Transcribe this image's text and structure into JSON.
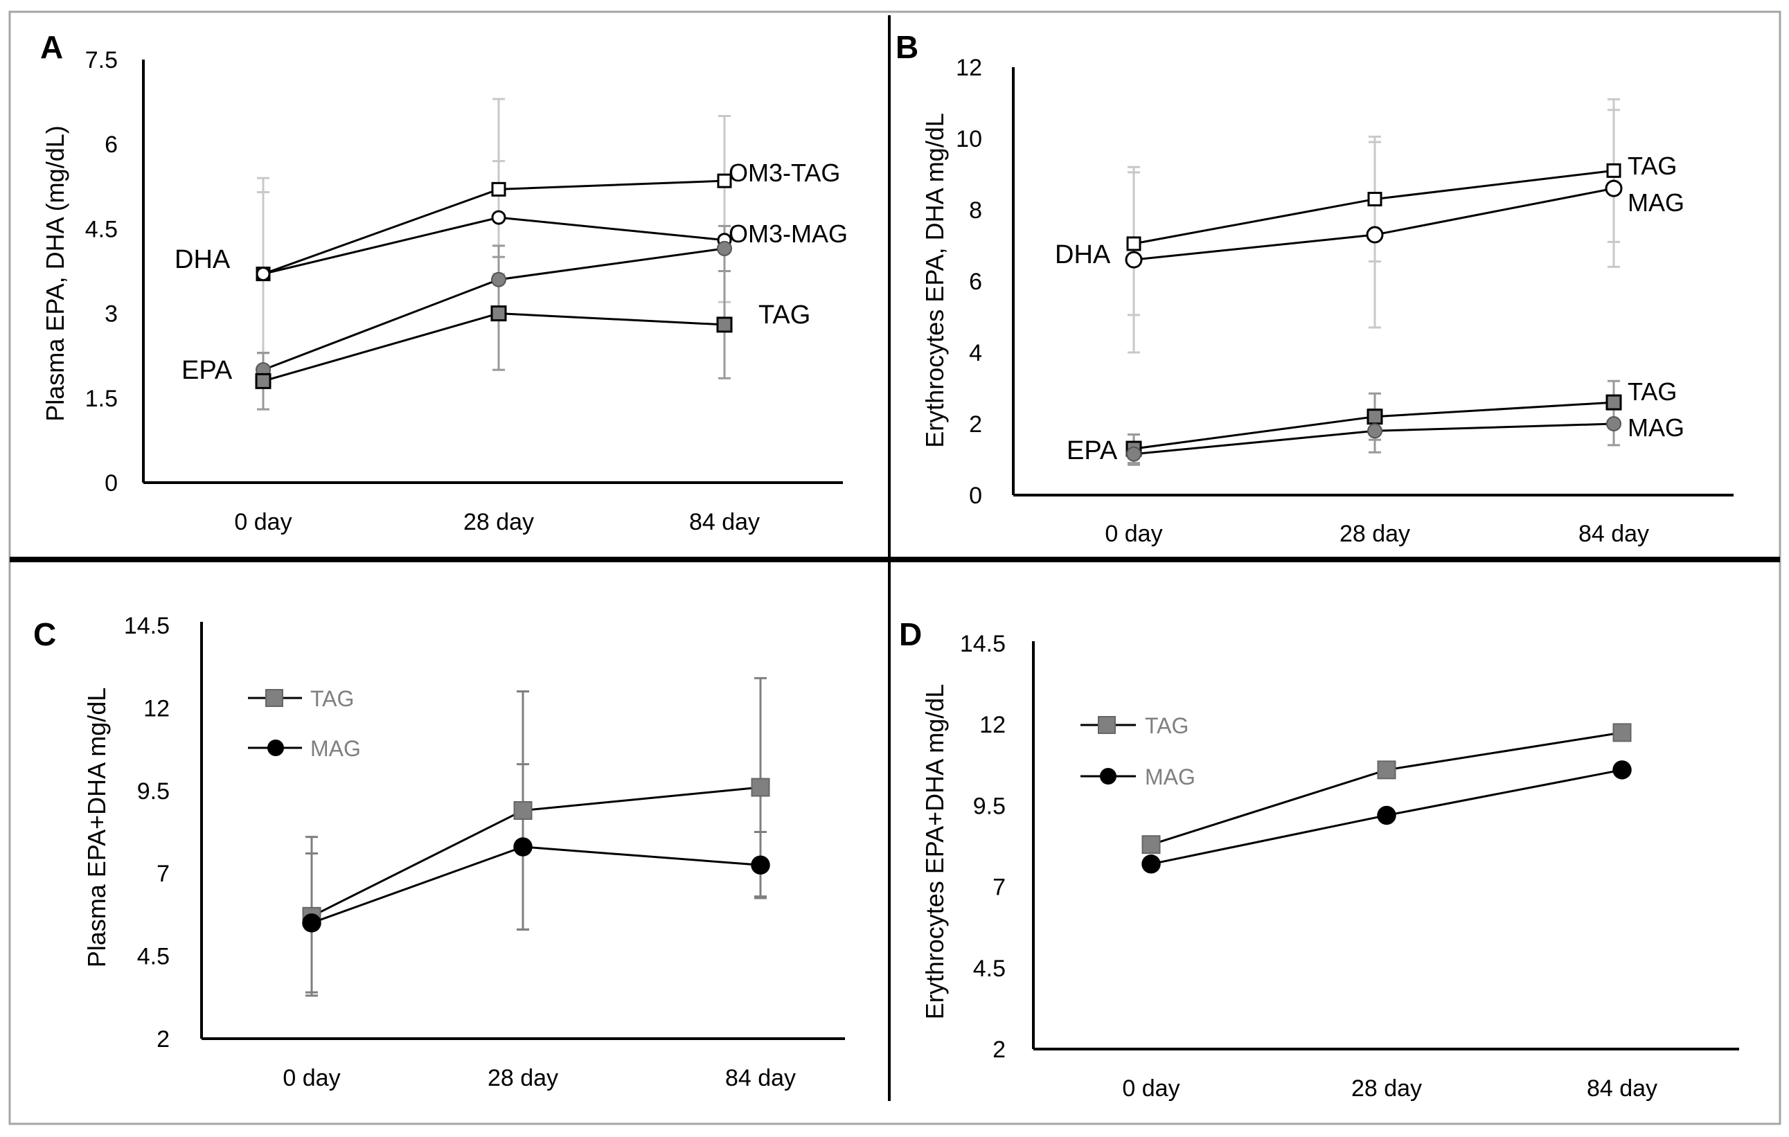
{
  "chart_data": [
    {
      "panel": "A",
      "type": "line",
      "categories": [
        "0 day",
        "28 day",
        "84 day"
      ],
      "ylabel": "Plasma EPA, DHA (mg/dL)",
      "ylim": [
        0,
        7.5
      ],
      "yticks": [
        "0",
        "1.5",
        "3",
        "4.5",
        "6",
        "7.5"
      ],
      "series": [
        {
          "name": "DHA OM3-TAG",
          "group": "DHA",
          "formulation": "TAG",
          "marker": "square-open",
          "values": [
            3.7,
            5.2,
            5.35
          ],
          "errors": [
            [
              1.4,
              1.45
            ],
            [
              1.6,
              1.6
            ],
            [
              1.15,
              1.15
            ]
          ]
        },
        {
          "name": "DHA OM3-MAG",
          "group": "DHA",
          "formulation": "MAG",
          "marker": "circle-open",
          "values": [
            3.7,
            4.7,
            4.3
          ],
          "errors": [
            [
              1.7,
              1.7
            ],
            [
              1.0,
              1.0
            ],
            [
              1.1,
              1.1
            ]
          ]
        },
        {
          "name": "EPA MAG",
          "group": "EPA",
          "formulation": "MAG",
          "marker": "circle-filled",
          "values": [
            2.0,
            3.6,
            4.15
          ],
          "errors": [
            [
              0.3,
              0.3
            ],
            [
              0.6,
              0.6
            ],
            [
              0.4,
              0.4
            ]
          ]
        },
        {
          "name": "EPA TAG",
          "group": "EPA",
          "formulation": "TAG",
          "marker": "square-filled",
          "values": [
            1.8,
            3.0,
            2.8
          ],
          "errors": [
            [
              0.5,
              0.5
            ],
            [
              1.0,
              1.0
            ],
            [
              0.95,
              0.95
            ]
          ]
        }
      ],
      "annotations": [
        "DHA",
        "EPA",
        "OM3-TAG",
        "OM3-MAG",
        "TAG"
      ]
    },
    {
      "panel": "B",
      "type": "line",
      "categories": [
        "0 day",
        "28 day",
        "84 day"
      ],
      "ylabel": "Erythrocytes EPA, DHA mg/dL",
      "ylim": [
        0,
        12
      ],
      "yticks": [
        "0",
        "2",
        "4",
        "6",
        "8",
        "10",
        "12"
      ],
      "series": [
        {
          "name": "DHA TAG",
          "group": "DHA",
          "formulation": "TAG",
          "marker": "square-open",
          "values": [
            7.05,
            8.3,
            9.1
          ],
          "errors": [
            [
              2.0,
              2.0
            ],
            [
              1.75,
              1.75
            ],
            [
              2.0,
              2.0
            ]
          ]
        },
        {
          "name": "DHA MAG",
          "group": "DHA",
          "formulation": "MAG",
          "marker": "circle-open",
          "values": [
            6.6,
            7.3,
            8.6
          ],
          "errors": [
            [
              2.6,
              2.6
            ],
            [
              2.6,
              2.6
            ],
            [
              2.2,
              2.2
            ]
          ]
        },
        {
          "name": "EPA TAG",
          "group": "EPA",
          "formulation": "TAG",
          "marker": "square-filled",
          "values": [
            1.3,
            2.2,
            2.6
          ],
          "errors": [
            [
              0.4,
              0.4
            ],
            [
              0.65,
              0.65
            ],
            [
              0.6,
              0.6
            ]
          ]
        },
        {
          "name": "EPA MAG",
          "group": "EPA",
          "formulation": "MAG",
          "marker": "circle-filled",
          "values": [
            1.15,
            1.8,
            2.0
          ],
          "errors": [
            [
              0.3,
              0.3
            ],
            [
              0.6,
              0.6
            ],
            [
              0.6,
              0.6
            ]
          ]
        }
      ],
      "annotations": [
        "DHA",
        "EPA",
        "TAG",
        "MAG",
        "TAG",
        "MAG"
      ]
    },
    {
      "panel": "C",
      "type": "line",
      "categories": [
        "0 day",
        "28 day",
        "84 day"
      ],
      "ylabel": "Plasma EPA+DHA mg/dL",
      "ylim": [
        2,
        14.5
      ],
      "yticks": [
        "2",
        "4.5",
        "7",
        "9.5",
        "12",
        "14.5"
      ],
      "legend": [
        "TAG",
        "MAG"
      ],
      "legend_position": "top-left",
      "series": [
        {
          "name": "TAG",
          "marker": "square-filled",
          "values": [
            5.7,
            8.9,
            9.6
          ],
          "errors": [
            [
              2.4,
              2.4
            ],
            [
              3.6,
              3.6
            ],
            [
              3.3,
              3.3
            ]
          ]
        },
        {
          "name": "MAG",
          "marker": "circle-dark",
          "values": [
            5.5,
            7.8,
            7.25
          ],
          "errors": [
            [
              2.1,
              2.1
            ],
            [
              2.5,
              2.5
            ],
            [
              1.0,
              1.0
            ]
          ]
        }
      ]
    },
    {
      "panel": "D",
      "type": "line",
      "categories": [
        "0 day",
        "28 day",
        "84 day"
      ],
      "ylabel": "Erythrocytes EPA+DHA mg/dL",
      "ylim": [
        2,
        14.5
      ],
      "yticks": [
        "2",
        "4.5",
        "7",
        "9.5",
        "12",
        "14.5"
      ],
      "legend": [
        "TAG",
        "MAG"
      ],
      "legend_position": "top-left",
      "series": [
        {
          "name": "TAG",
          "marker": "square-filled",
          "values": [
            8.3,
            10.6,
            11.75
          ]
        },
        {
          "name": "MAG",
          "marker": "circle-dark",
          "values": [
            7.7,
            9.2,
            10.6
          ]
        }
      ]
    }
  ],
  "panels": {
    "A": {
      "letter": "A",
      "label_dha": "DHA",
      "label_epa": "EPA",
      "label_om3tag": "OM3-TAG",
      "label_om3mag": "OM3-MAG",
      "label_tag": "TAG"
    },
    "B": {
      "letter": "B",
      "label_dha": "DHA",
      "label_epa": "EPA",
      "label_dha_tag": "TAG",
      "label_dha_mag": "MAG",
      "label_epa_tag": "TAG",
      "label_epa_mag": "MAG"
    },
    "C": {
      "letter": "C",
      "legend_tag": "TAG",
      "legend_mag": "MAG"
    },
    "D": {
      "letter": "D",
      "legend_tag": "TAG",
      "legend_mag": "MAG"
    }
  },
  "colors": {
    "line": "#000000",
    "axis": "#000000",
    "frame": "#a6a6a6",
    "divider": "#000000",
    "marker_gray": "#808080",
    "marker_dark": "#000000",
    "error_light": "#c8c8c8",
    "error_mid": "#999999",
    "error_dark": "#7f7f7f",
    "legend_text": "#7f7f7f"
  }
}
